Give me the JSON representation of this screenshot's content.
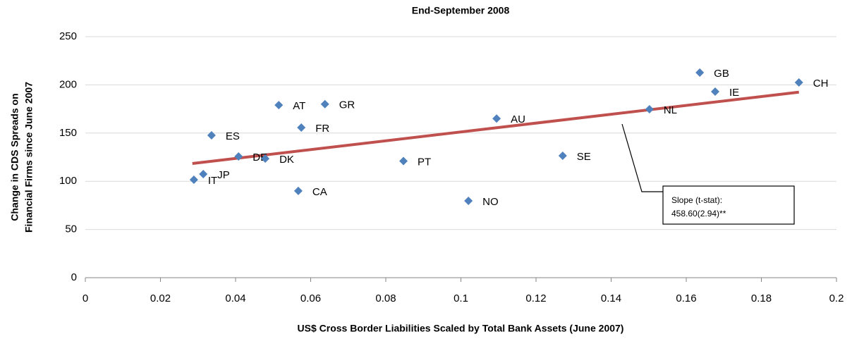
{
  "chart_data": {
    "type": "scatter",
    "title": "End-September 2008",
    "x_label": "US$ Cross Border Liabilities Scaled by Total Bank Assets (June 2007)",
    "y_label": [
      "Change in CDS Spreads on",
      "Financial Firms since June 2007"
    ],
    "xlim": [
      0,
      0.2
    ],
    "xticks": [
      0,
      0.02,
      0.04,
      0.06,
      0.08,
      0.1,
      0.12,
      0.14,
      0.16,
      0.18,
      0.2
    ],
    "ylim": [
      0,
      250
    ],
    "yticks": [
      0,
      50,
      100,
      150,
      200,
      250
    ],
    "grid": true,
    "series": [
      {
        "color": "#4f81bd",
        "labels": [
          "AT",
          "GR",
          "ES",
          "FR",
          "DE",
          "DK",
          "JP",
          "IT",
          "CA",
          "PT",
          "NO",
          "AU",
          "SE",
          "NL",
          "GB",
          "IE",
          "CH"
        ],
        "x": [
          0.0515,
          0.0638,
          0.0336,
          0.0575,
          0.0408,
          0.0479,
          0.0314,
          0.0289,
          0.0567,
          0.0847,
          0.102,
          0.1095,
          0.1271,
          0.1502,
          0.1636,
          0.1677,
          0.19
        ],
        "values": [
          179,
          180,
          147.7,
          155.7,
          125.7,
          123.5,
          107.5,
          101.6,
          90,
          121,
          79.7,
          165,
          126.5,
          174.7,
          212.7,
          193,
          202.5
        ]
      }
    ],
    "trendline": {
      "color": "#c0504d",
      "x": [
        0.0285,
        0.19
      ],
      "values": [
        118.4,
        192.4
      ]
    },
    "annotation": [
      "Slope (t-stat):",
      "458.60(2.94)**"
    ]
  }
}
